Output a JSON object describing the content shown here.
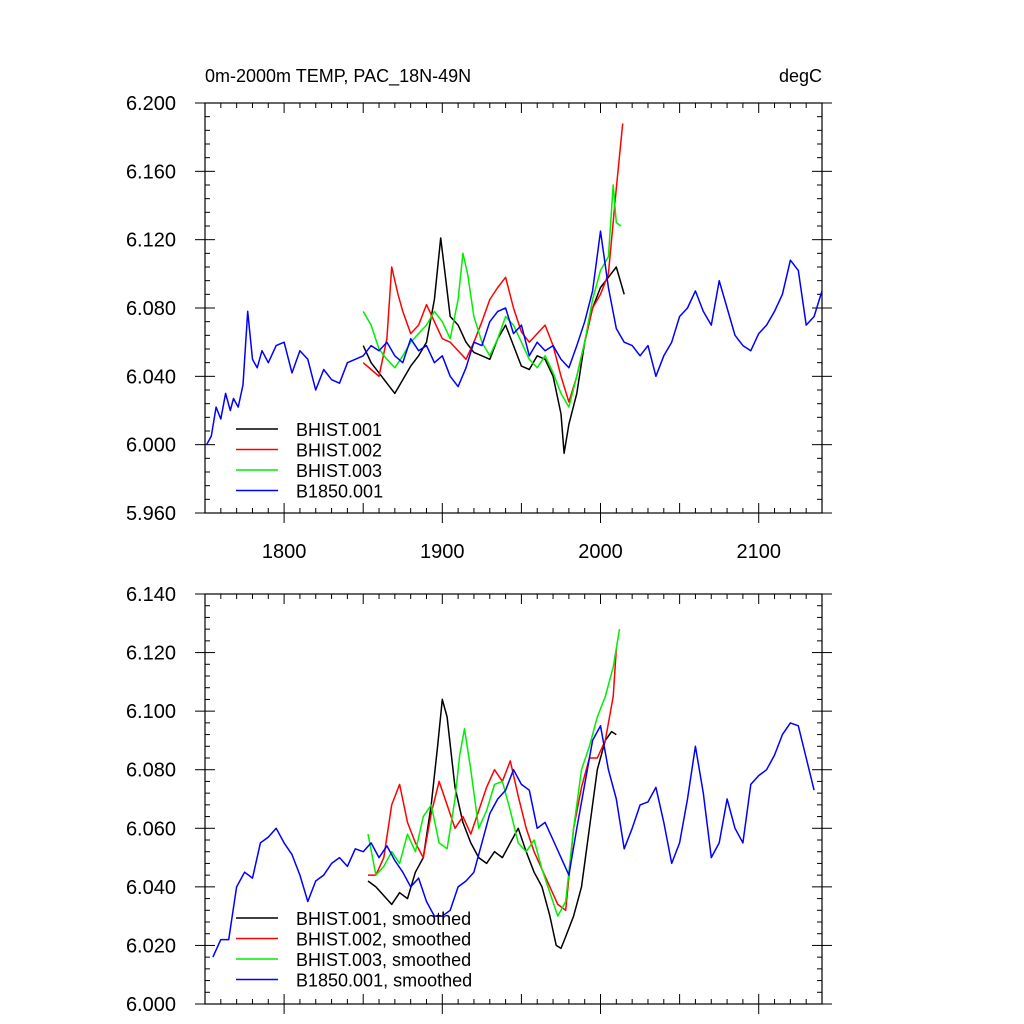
{
  "chart_data": [
    {
      "type": "line",
      "title": "0m-2000m TEMP, PAC_18N-49N",
      "units": "degC",
      "xlim": [
        1750,
        2140
      ],
      "ylim": [
        5.96,
        6.2
      ],
      "xticks": [
        "1800",
        "1900",
        "2000",
        "2100"
      ],
      "yticks": [
        "5.960",
        "6.000",
        "6.040",
        "6.080",
        "6.120",
        "6.160",
        "6.200"
      ],
      "legend_position": "bottom-left",
      "grid": false,
      "series": [
        {
          "name": "BHIST.001",
          "color": "#000000",
          "x": [
            1850,
            1855,
            1860,
            1865,
            1870,
            1875,
            1880,
            1885,
            1890,
            1895,
            1899,
            1902,
            1905,
            1910,
            1915,
            1920,
            1925,
            1930,
            1935,
            1940,
            1945,
            1950,
            1955,
            1960,
            1965,
            1970,
            1975,
            1977,
            1980,
            1985,
            1990,
            1995,
            2000,
            2005,
            2010,
            2015
          ],
          "y": [
            6.058,
            6.048,
            6.042,
            6.036,
            6.03,
            6.038,
            6.046,
            6.052,
            6.06,
            6.085,
            6.121,
            6.098,
            6.075,
            6.07,
            6.06,
            6.054,
            6.052,
            6.05,
            6.062,
            6.07,
            6.058,
            6.046,
            6.044,
            6.052,
            6.05,
            6.04,
            6.018,
            5.995,
            6.012,
            6.03,
            6.06,
            6.08,
            6.092,
            6.098,
            6.104,
            6.088
          ]
        },
        {
          "name": "BHIST.002",
          "color": "#ff0000",
          "x": [
            1850,
            1855,
            1860,
            1865,
            1868,
            1872,
            1875,
            1880,
            1885,
            1890,
            1895,
            1900,
            1905,
            1910,
            1915,
            1920,
            1925,
            1930,
            1935,
            1940,
            1945,
            1950,
            1955,
            1960,
            1965,
            1970,
            1975,
            1980,
            1985,
            1990,
            1995,
            2000,
            2005,
            2010,
            2014
          ],
          "y": [
            6.048,
            6.044,
            6.04,
            6.062,
            6.104,
            6.088,
            6.078,
            6.065,
            6.07,
            6.082,
            6.072,
            6.062,
            6.06,
            6.055,
            6.05,
            6.06,
            6.072,
            6.085,
            6.092,
            6.098,
            6.08,
            6.066,
            6.06,
            6.065,
            6.07,
            6.058,
            6.04,
            6.025,
            6.04,
            6.06,
            6.08,
            6.088,
            6.1,
            6.15,
            6.188
          ]
        },
        {
          "name": "BHIST.003",
          "color": "#00ee00",
          "x": [
            1850,
            1855,
            1860,
            1865,
            1870,
            1875,
            1880,
            1885,
            1890,
            1895,
            1900,
            1905,
            1910,
            1913,
            1916,
            1920,
            1925,
            1930,
            1935,
            1940,
            1945,
            1950,
            1955,
            1960,
            1965,
            1970,
            1975,
            1980,
            1985,
            1990,
            1995,
            2000,
            2005,
            2008,
            2010,
            2013
          ],
          "y": [
            6.078,
            6.07,
            6.056,
            6.05,
            6.045,
            6.052,
            6.06,
            6.065,
            6.07,
            6.078,
            6.072,
            6.062,
            6.085,
            6.112,
            6.1,
            6.075,
            6.06,
            6.052,
            6.062,
            6.075,
            6.07,
            6.06,
            6.05,
            6.045,
            6.052,
            6.042,
            6.03,
            6.022,
            6.04,
            6.06,
            6.085,
            6.102,
            6.11,
            6.152,
            6.13,
            6.128
          ]
        },
        {
          "name": "B1850.001",
          "color": "#0000ff",
          "x": [
            1751,
            1754,
            1757,
            1760,
            1763,
            1766,
            1768,
            1771,
            1774,
            1777,
            1780,
            1783,
            1786,
            1790,
            1795,
            1800,
            1805,
            1810,
            1815,
            1820,
            1825,
            1830,
            1835,
            1840,
            1845,
            1850,
            1855,
            1860,
            1865,
            1870,
            1875,
            1880,
            1885,
            1890,
            1895,
            1900,
            1905,
            1910,
            1915,
            1920,
            1925,
            1930,
            1935,
            1940,
            1945,
            1950,
            1955,
            1960,
            1965,
            1970,
            1975,
            1980,
            1985,
            1990,
            1995,
            2000,
            2005,
            2010,
            2015,
            2020,
            2025,
            2030,
            2035,
            2040,
            2045,
            2050,
            2055,
            2060,
            2065,
            2070,
            2075,
            2080,
            2085,
            2090,
            2095,
            2100,
            2105,
            2110,
            2115,
            2120,
            2125,
            2130,
            2135,
            2140
          ],
          "y": [
            6.0,
            6.005,
            6.022,
            6.015,
            6.03,
            6.02,
            6.027,
            6.022,
            6.035,
            6.078,
            6.05,
            6.045,
            6.055,
            6.048,
            6.058,
            6.06,
            6.042,
            6.055,
            6.05,
            6.032,
            6.044,
            6.038,
            6.036,
            6.048,
            6.05,
            6.052,
            6.058,
            6.055,
            6.06,
            6.052,
            6.048,
            6.062,
            6.055,
            6.058,
            6.048,
            6.052,
            6.04,
            6.034,
            6.045,
            6.06,
            6.058,
            6.072,
            6.078,
            6.08,
            6.065,
            6.07,
            6.052,
            6.06,
            6.055,
            6.058,
            6.05,
            6.045,
            6.058,
            6.072,
            6.09,
            6.125,
            6.092,
            6.068,
            6.06,
            6.058,
            6.052,
            6.058,
            6.04,
            6.052,
            6.06,
            6.075,
            6.08,
            6.09,
            6.078,
            6.07,
            6.096,
            6.08,
            6.064,
            6.058,
            6.055,
            6.065,
            6.07,
            6.078,
            6.088,
            6.108,
            6.102,
            6.07,
            6.075,
            6.09
          ]
        }
      ]
    },
    {
      "type": "line",
      "title": "",
      "xlim": [
        1750,
        2140
      ],
      "ylim": [
        6.0,
        6.14
      ],
      "yticks": [
        "6.000",
        "6.020",
        "6.040",
        "6.060",
        "6.080",
        "6.100",
        "6.120",
        "6.140"
      ],
      "legend_position": "bottom-left",
      "grid": false,
      "series": [
        {
          "name": "BHIST.001, smoothed",
          "color": "#000000",
          "x": [
            1853,
            1858,
            1863,
            1868,
            1873,
            1878,
            1883,
            1888,
            1893,
            1897,
            1900,
            1903,
            1908,
            1913,
            1918,
            1923,
            1928,
            1933,
            1938,
            1943,
            1948,
            1953,
            1958,
            1963,
            1968,
            1972,
            1975,
            1978,
            1983,
            1988,
            1993,
            1998,
            2003,
            2007,
            2010
          ],
          "y": [
            6.042,
            6.04,
            6.037,
            6.034,
            6.038,
            6.036,
            6.045,
            6.05,
            6.068,
            6.088,
            6.104,
            6.098,
            6.074,
            6.062,
            6.055,
            6.05,
            6.048,
            6.052,
            6.05,
            6.055,
            6.06,
            6.052,
            6.045,
            6.04,
            6.03,
            6.02,
            6.019,
            6.023,
            6.03,
            6.04,
            6.06,
            6.08,
            6.09,
            6.093,
            6.092
          ]
        },
        {
          "name": "BHIST.002, smoothed",
          "color": "#ff0000",
          "x": [
            1853,
            1858,
            1863,
            1868,
            1873,
            1878,
            1883,
            1888,
            1893,
            1898,
            1903,
            1908,
            1913,
            1918,
            1923,
            1928,
            1933,
            1938,
            1943,
            1948,
            1953,
            1958,
            1963,
            1968,
            1973,
            1978,
            1983,
            1988,
            1993,
            1998,
            2003,
            2008,
            2010
          ],
          "y": [
            6.044,
            6.044,
            6.05,
            6.068,
            6.075,
            6.062,
            6.055,
            6.05,
            6.065,
            6.076,
            6.068,
            6.06,
            6.064,
            6.058,
            6.066,
            6.074,
            6.08,
            6.076,
            6.083,
            6.071,
            6.06,
            6.052,
            6.046,
            6.04,
            6.034,
            6.032,
            6.06,
            6.074,
            6.084,
            6.084,
            6.09,
            6.105,
            6.121
          ]
        },
        {
          "name": "BHIST.003, smoothed",
          "color": "#00ee00",
          "x": [
            1853,
            1858,
            1863,
            1868,
            1873,
            1878,
            1883,
            1888,
            1893,
            1898,
            1903,
            1908,
            1911,
            1914,
            1918,
            1923,
            1928,
            1933,
            1938,
            1943,
            1948,
            1953,
            1958,
            1963,
            1968,
            1973,
            1978,
            1983,
            1988,
            1993,
            1998,
            2003,
            2008,
            2012
          ],
          "y": [
            6.058,
            6.044,
            6.047,
            6.052,
            6.048,
            6.058,
            6.052,
            6.064,
            6.068,
            6.055,
            6.053,
            6.07,
            6.085,
            6.094,
            6.08,
            6.06,
            6.066,
            6.075,
            6.076,
            6.066,
            6.055,
            6.052,
            6.056,
            6.046,
            6.038,
            6.03,
            6.035,
            6.06,
            6.08,
            6.088,
            6.098,
            6.105,
            6.115,
            6.128
          ]
        },
        {
          "name": "B1850.001, smoothed",
          "color": "#0000ff",
          "x": [
            1755,
            1760,
            1765,
            1770,
            1775,
            1780,
            1785,
            1790,
            1795,
            1800,
            1805,
            1810,
            1815,
            1820,
            1825,
            1830,
            1835,
            1840,
            1845,
            1850,
            1855,
            1860,
            1865,
            1870,
            1875,
            1880,
            1885,
            1890,
            1895,
            1900,
            1905,
            1910,
            1915,
            1920,
            1925,
            1930,
            1935,
            1940,
            1945,
            1950,
            1955,
            1960,
            1965,
            1970,
            1975,
            1980,
            1985,
            1990,
            1995,
            2000,
            2005,
            2010,
            2015,
            2020,
            2025,
            2030,
            2035,
            2040,
            2045,
            2050,
            2055,
            2060,
            2065,
            2070,
            2075,
            2080,
            2085,
            2090,
            2095,
            2100,
            2105,
            2110,
            2115,
            2120,
            2125,
            2130,
            2135
          ],
          "y": [
            6.016,
            6.022,
            6.022,
            6.04,
            6.045,
            6.043,
            6.055,
            6.057,
            6.06,
            6.055,
            6.051,
            6.044,
            6.035,
            6.042,
            6.044,
            6.048,
            6.05,
            6.047,
            6.053,
            6.052,
            6.055,
            6.05,
            6.054,
            6.049,
            6.045,
            6.04,
            6.043,
            6.035,
            6.03,
            6.03,
            6.032,
            6.04,
            6.042,
            6.045,
            6.055,
            6.065,
            6.07,
            6.073,
            6.08,
            6.075,
            6.073,
            6.06,
            6.062,
            6.056,
            6.05,
            6.044,
            6.06,
            6.075,
            6.09,
            6.095,
            6.08,
            6.07,
            6.053,
            6.06,
            6.068,
            6.069,
            6.074,
            6.062,
            6.048,
            6.055,
            6.07,
            6.088,
            6.072,
            6.05,
            6.055,
            6.07,
            6.06,
            6.055,
            6.075,
            6.078,
            6.08,
            6.085,
            6.092,
            6.096,
            6.095,
            6.084,
            6.073
          ]
        }
      ]
    }
  ]
}
